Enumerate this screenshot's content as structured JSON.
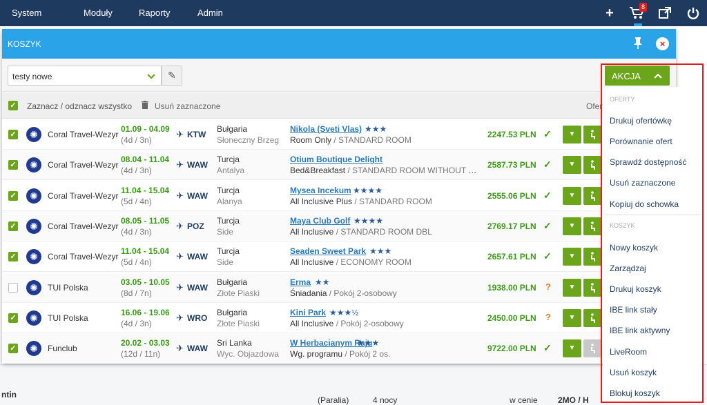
{
  "nav": {
    "menu": [
      {
        "label": "System rez.",
        "name": "nav-system-rez"
      },
      {
        "label": "Moduły",
        "name": "nav-moduly"
      },
      {
        "label": "Raporty",
        "name": "nav-raporty"
      },
      {
        "label": "Admin",
        "name": "nav-admin"
      }
    ],
    "cart_count": "8",
    "icons": [
      "plus-icon",
      "cart-icon",
      "external-link-icon",
      "power-icon"
    ]
  },
  "background": {
    "left_label": "ntin",
    "paralia": "(Paralia)",
    "nights": "4 nocy",
    "price_label": "w cenie",
    "board": "2MO / H"
  },
  "modal": {
    "title": "KOSZYK",
    "basket_select": "testy nowe",
    "select_all": "Zaznacz / odznacz wszystko",
    "delete_selected": "Usuń zaznaczone",
    "oferty": "Oferty"
  },
  "rows": [
    {
      "operator": "Coral Travel-Wezyr",
      "dates": "01.09 - 04.09",
      "duration": "(4d / 3n)",
      "airport": "KTW",
      "country": "Bułgaria",
      "region": "Słoneczny Brzeg",
      "hotel": "Nikola (Sveti Vlas)",
      "stars": "★★★",
      "board": "Room Only",
      "room": "/ STANDARD ROOM",
      "price": "2247.53 PLN",
      "status": "ok",
      "checked": true,
      "action_enabled": true
    },
    {
      "operator": "Coral Travel-Wezyr",
      "dates": "08.04 - 11.04",
      "duration": "(4d / 3n)",
      "airport": "WAW",
      "country": "Turcja",
      "region": "Antalya",
      "hotel": "Otium Boutique Delight",
      "stars": "",
      "board": "Bed&Breakfast",
      "room": "/ STANDARD ROOM WITHOUT BA...",
      "price": "2587.73 PLN",
      "status": "ok",
      "checked": true,
      "action_enabled": true
    },
    {
      "operator": "Coral Travel-Wezyr",
      "dates": "11.04 - 15.04",
      "duration": "(5d / 4n)",
      "airport": "WAW",
      "country": "Turcja",
      "region": "Alanya",
      "hotel": "Mysea Incekum",
      "stars": "★★★★",
      "board": "All Inclusive Plus",
      "room": "/ STANDARD ROOM",
      "price": "2555.06 PLN",
      "status": "ok",
      "checked": true,
      "action_enabled": true
    },
    {
      "operator": "Coral Travel-Wezyr",
      "dates": "08.05 - 11.05",
      "duration": "(4d / 3n)",
      "airport": "POZ",
      "country": "Turcja",
      "region": "Side",
      "hotel": "Maya Club Golf",
      "stars": "★★★★",
      "board": "All Inclusive",
      "room": "/ STANDARD ROOM DBL",
      "price": "2769.17 PLN",
      "status": "ok",
      "checked": true,
      "action_enabled": true
    },
    {
      "operator": "Coral Travel-Wezyr",
      "dates": "11.04 - 15.04",
      "duration": "(5d / 4n)",
      "airport": "WAW",
      "country": "Turcja",
      "region": "Side",
      "hotel": "Seaden Sweet Park",
      "stars": "★★★",
      "board": "All Inclusive",
      "room": "/ ECONOMY ROOM",
      "price": "2657.61 PLN",
      "status": "ok",
      "checked": true,
      "action_enabled": true
    },
    {
      "operator": "TUI Polska",
      "dates": "03.05 - 10.05",
      "duration": "(8d / 7n)",
      "airport": "WAW",
      "country": "Bułgaria",
      "region": "Złote Piaski",
      "hotel": "Erma",
      "stars": "★★",
      "board": "Śniadania",
      "room": "/ Pokój 2-osobowy",
      "price": "1938.00 PLN",
      "status": "question",
      "checked": false,
      "action_enabled": true
    },
    {
      "operator": "TUI Polska",
      "dates": "16.06 - 19.06",
      "duration": "(4d / 3n)",
      "airport": "WRO",
      "country": "Bułgaria",
      "region": "Złote Piaski",
      "hotel": "Kini Park",
      "stars": "★★★½",
      "board": "All Inclusive",
      "room": "/ Pokój 2-osobowy",
      "price": "2450.00 PLN",
      "status": "question",
      "checked": true,
      "action_enabled": true
    },
    {
      "operator": "Funclub",
      "dates": "20.02 - 03.03",
      "duration": "(12d / 11n)",
      "airport": "WAW",
      "country": "Sri Lanka",
      "region": "Wyc. Objazdowa",
      "hotel": "W Herbacianym Raju",
      "stars": "★★★",
      "board": "Wg. programu",
      "room": "/ Pokój 2 os.",
      "price": "9722.00 PLN",
      "status": "ok",
      "checked": true,
      "action_enabled": false
    }
  ],
  "akcja": {
    "button": "AKCJA",
    "section_offers": "OFERTY",
    "offers": [
      "Drukuj ofertówkę",
      "Porównanie ofert",
      "Sprawdź dostępność",
      "Usuń zaznaczone",
      "Kopiuj do schowka"
    ],
    "section_basket": "KOSZYK",
    "basket": [
      "Nowy koszyk",
      "Zarządzaj",
      "Drukuj koszyk",
      "IBE link stały",
      "IBE link aktywny",
      "LiveRoom",
      "Usuń koszyk",
      "Blokuj koszyk"
    ]
  },
  "colors": {
    "nav": "#1f3a5f",
    "header": "#2aa3e8",
    "accent": "#6aa51a",
    "highlight_border": "#e01e1e"
  }
}
